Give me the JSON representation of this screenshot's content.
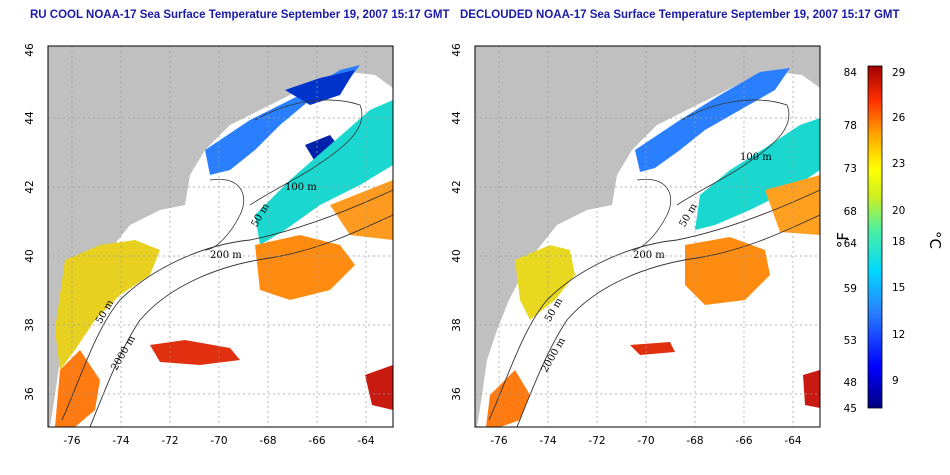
{
  "panels": [
    {
      "title": "RU COOL NOAA-17 Sea Surface Temperature September 19, 2007 15:17 GMT",
      "lat_ticks": [
        "46",
        "44",
        "42",
        "40",
        "38",
        "36"
      ],
      "lon_ticks": [
        "-76",
        "-74",
        "-72",
        "-70",
        "-68",
        "-66",
        "-64"
      ],
      "contour_labels": [
        "50 m",
        "100 m",
        "200 m",
        "2000 m",
        "50 m"
      ]
    },
    {
      "title": "DECLOUDED NOAA-17 Sea Surface Temperature September 19, 2007 15:17 GMT",
      "lat_ticks": [
        "46",
        "44",
        "42",
        "40",
        "38",
        "36"
      ],
      "lon_ticks": [
        "-76",
        "-74",
        "-72",
        "-70",
        "-68",
        "-66",
        "-64"
      ],
      "contour_labels": [
        "50 m",
        "100 m",
        "200 m",
        "2000 m",
        "50 m"
      ]
    }
  ],
  "colorbar": {
    "fahrenheit_ticks": [
      "84",
      "78",
      "73",
      "68",
      "64",
      "59",
      "53",
      "48",
      "45"
    ],
    "celsius_ticks": [
      "29",
      "26",
      "23",
      "20",
      "18",
      "15",
      "12",
      "9"
    ],
    "fahrenheit_unit": "°F",
    "celsius_unit": "°C"
  },
  "colors": {
    "land": "#c0c0c0",
    "cloud": "#ffffff",
    "title": "#1a1aa6",
    "grid": "#9a9a9a",
    "contour": "#333333"
  }
}
